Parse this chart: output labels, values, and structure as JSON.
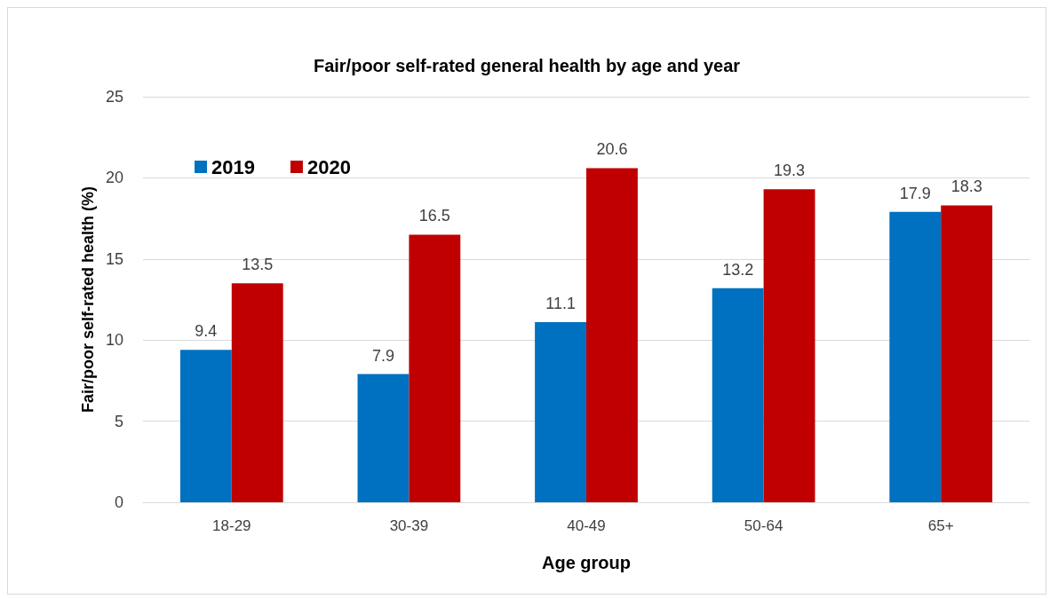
{
  "chart_data": {
    "type": "bar",
    "title": "Fair/poor self-rated general health by age and year",
    "xlabel": "Age group",
    "ylabel": "Fair/poor self-rated health (%)",
    "categories": [
      "18-29",
      "30-39",
      "40-49",
      "50-64",
      "65+"
    ],
    "series": [
      {
        "name": "2019",
        "color": "#0070c0",
        "values": [
          9.4,
          7.9,
          11.1,
          13.2,
          17.9
        ]
      },
      {
        "name": "2020",
        "color": "#c00000",
        "values": [
          13.5,
          16.5,
          20.6,
          19.3,
          18.3
        ]
      }
    ],
    "ylim": [
      0,
      25
    ],
    "yticks": [
      0,
      5,
      10,
      15,
      20,
      25
    ],
    "grid": "y",
    "legend": "top left",
    "data_labels": true
  }
}
